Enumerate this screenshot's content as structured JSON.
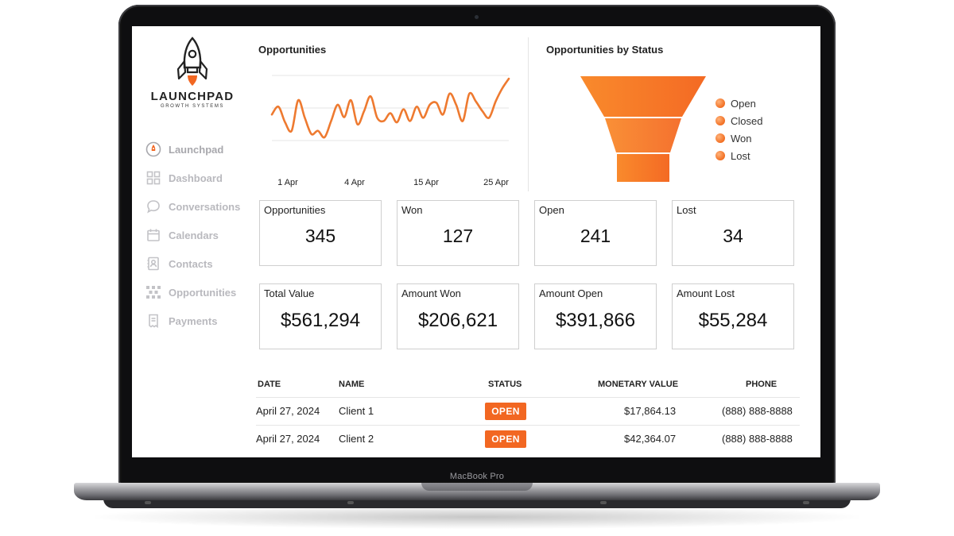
{
  "laptop": {
    "model_label": "MacBook Pro"
  },
  "brand": {
    "name": "LAUNCHPAD",
    "tagline": "GROWTH SYSTEMS"
  },
  "sidebar": {
    "items": [
      {
        "label": "Launchpad",
        "icon": "launchpad-icon"
      },
      {
        "label": "Dashboard",
        "icon": "dashboard-icon"
      },
      {
        "label": "Conversations",
        "icon": "chat-bubble-icon"
      },
      {
        "label": "Calendars",
        "icon": "calendar-icon"
      },
      {
        "label": "Contacts",
        "icon": "contacts-icon"
      },
      {
        "label": "Opportunities",
        "icon": "opportunities-icon"
      },
      {
        "label": "Payments",
        "icon": "payments-icon"
      }
    ]
  },
  "colors": {
    "accent": "#f26722",
    "line": "#ee7a30",
    "sidebar_text": "#b9b9be"
  },
  "line_panel": {
    "title": "Opportunities"
  },
  "funnel_panel": {
    "title": "Opportunities by Status",
    "legend": [
      "Open",
      "Closed",
      "Won",
      "Lost"
    ]
  },
  "chart_data": [
    {
      "type": "line",
      "title": "Opportunities",
      "x_ticks": [
        "1 Apr",
        "4 Apr",
        "15 Apr",
        "25 Apr"
      ],
      "y_gridlines": 3,
      "series": [
        {
          "values": [
            40,
            52,
            28,
            15,
            62,
            35,
            10,
            15,
            5,
            30,
            55,
            36,
            62,
            25,
            45,
            68,
            35,
            30,
            42,
            28,
            48,
            30,
            52,
            35,
            55,
            58,
            40,
            72,
            55,
            30,
            72,
            60,
            45,
            35,
            60,
            80,
            95
          ]
        }
      ]
    },
    {
      "type": "funnel",
      "title": "Opportunities by Status",
      "stages": [
        "Open",
        "Closed",
        "Won",
        "Lost"
      ]
    }
  ],
  "stats": [
    {
      "label": "Opportunities",
      "value": "345"
    },
    {
      "label": "Won",
      "value": "127"
    },
    {
      "label": "Open",
      "value": "241"
    },
    {
      "label": "Lost",
      "value": "34"
    }
  ],
  "money": [
    {
      "label": "Total Value",
      "value": "$561,294"
    },
    {
      "label": "Amount Won",
      "value": "$206,621"
    },
    {
      "label": "Amount Open",
      "value": "$391,866"
    },
    {
      "label": "Amount Lost",
      "value": "$55,284"
    }
  ],
  "table": {
    "headers": {
      "date": "DATE",
      "name": "NAME",
      "status": "STATUS",
      "value": "MONETARY VALUE",
      "phone": "PHONE"
    },
    "rows": [
      {
        "date": "April 27, 2024",
        "name": "Client 1",
        "status": "OPEN",
        "value": "$17,864.13",
        "phone": "(888) 888-8888"
      },
      {
        "date": "April 27, 2024",
        "name": "Client 2",
        "status": "OPEN",
        "value": "$42,364.07",
        "phone": "(888) 888-8888"
      }
    ]
  }
}
